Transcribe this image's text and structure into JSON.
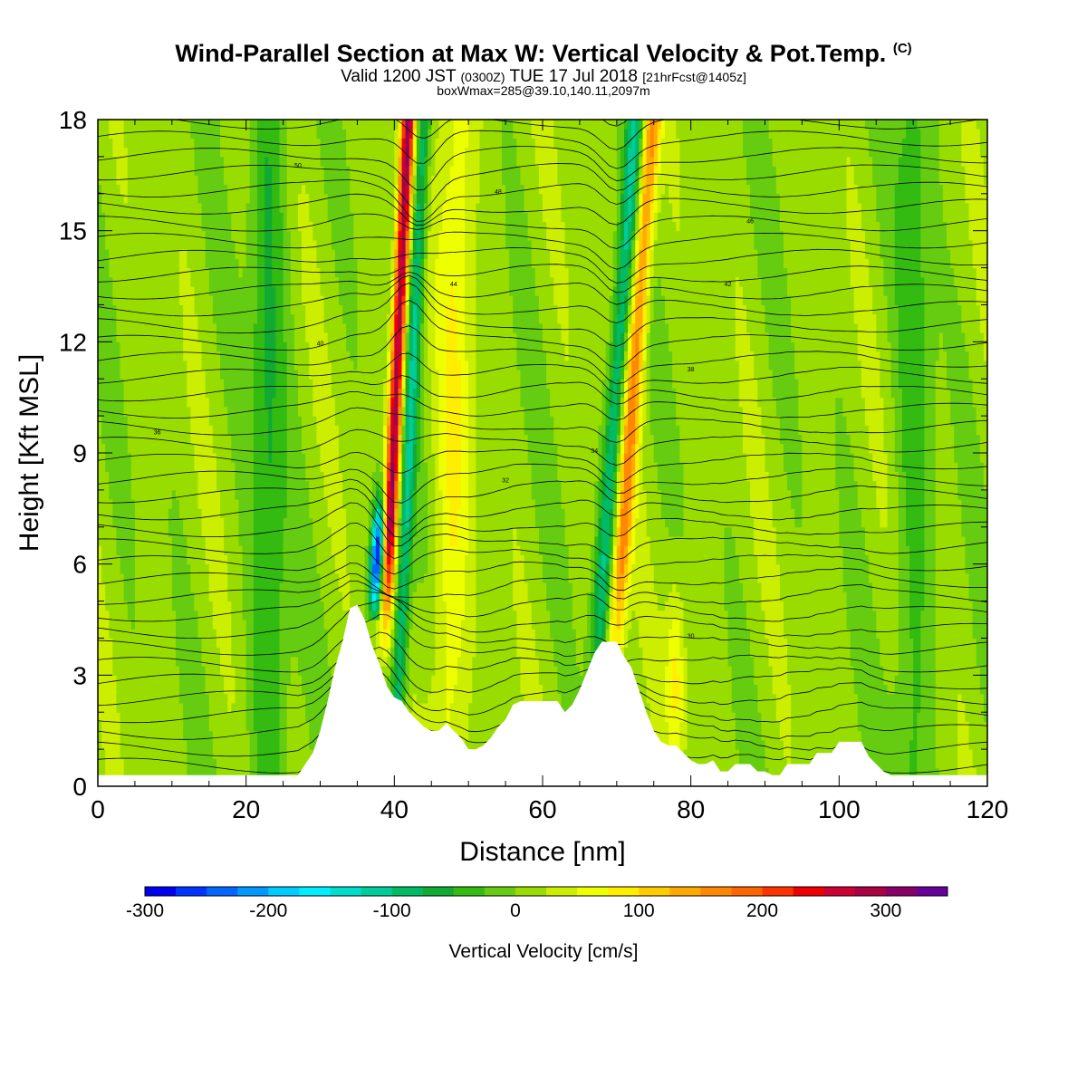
{
  "title": {
    "main": "Wind-Parallel Section at Max W: Vertical Velocity & Pot.Temp.",
    "copyright": "(C)",
    "valid_prefix": "Valid 1200 JST",
    "valid_z": "(0300Z)",
    "valid_date": "TUE 17 Jul 2018",
    "valid_fcst": "[21hrFcst@1405z]",
    "box": "boxWmax=285@39.10,140.11,2097m"
  },
  "chart_data": {
    "type": "heatmap",
    "xlabel": "Distance [nm]",
    "ylabel": "Height [Kft MSL]",
    "xlim": [
      0,
      120
    ],
    "ylim": [
      0,
      18
    ],
    "x_ticks": [
      0,
      20,
      40,
      60,
      80,
      100,
      120
    ],
    "y_ticks": [
      0,
      3,
      6,
      9,
      12,
      15,
      18
    ],
    "colorbar": {
      "label": "Vertical Velocity [cm/s]",
      "min": -300,
      "max": 350,
      "step": 25,
      "tick_values": [
        -300,
        -200,
        -100,
        0,
        100,
        200,
        300
      ],
      "colors": [
        "#0000ee",
        "#0033ff",
        "#0066ff",
        "#0099ff",
        "#00ccff",
        "#00eeff",
        "#00ddcc",
        "#00cc99",
        "#00bb66",
        "#11aa33",
        "#33bb11",
        "#66cc11",
        "#99dd00",
        "#ccee00",
        "#eeff00",
        "#ffee00",
        "#ffcc00",
        "#ffaa00",
        "#ff8800",
        "#ff6600",
        "#ff3300",
        "#ee0000",
        "#cc0033",
        "#aa0044",
        "#880066",
        "#660099"
      ]
    },
    "features": [
      {
        "kind": "updraft",
        "x_km_base": 37,
        "x_top": 40,
        "peak_cms": 285
      },
      {
        "kind": "downdraft",
        "x_base": 36,
        "x_top": 43,
        "min_cms": -300
      },
      {
        "kind": "updraft",
        "x_base": 66,
        "x_top": 73,
        "peak_cms": 150
      },
      {
        "kind": "downdraft",
        "x_base": 70,
        "x_top": 76,
        "min_cms": -100
      }
    ],
    "terrain": [
      [
        0,
        0.3
      ],
      [
        27,
        0.3
      ],
      [
        28,
        0.6
      ],
      [
        29,
        0.9
      ],
      [
        30,
        1.5
      ],
      [
        31,
        2.3
      ],
      [
        32,
        3.2
      ],
      [
        33,
        3.9
      ],
      [
        34,
        4.8
      ],
      [
        35,
        4.9
      ],
      [
        36,
        4.5
      ],
      [
        37,
        3.8
      ],
      [
        38,
        3.3
      ],
      [
        39,
        2.7
      ],
      [
        40,
        2.4
      ],
      [
        41,
        2.3
      ],
      [
        42,
        2.0
      ],
      [
        43,
        1.8
      ],
      [
        44,
        1.6
      ],
      [
        45,
        1.5
      ],
      [
        46,
        1.5
      ],
      [
        47,
        1.7
      ],
      [
        48,
        1.5
      ],
      [
        49,
        1.3
      ],
      [
        50,
        1.0
      ],
      [
        51,
        1.0
      ],
      [
        52,
        1.1
      ],
      [
        53,
        1.3
      ],
      [
        54,
        1.6
      ],
      [
        55,
        1.8
      ],
      [
        56,
        2.2
      ],
      [
        57,
        2.3
      ],
      [
        58,
        2.3
      ],
      [
        60,
        2.3
      ],
      [
        62,
        2.3
      ],
      [
        63,
        2.0
      ],
      [
        64,
        2.2
      ],
      [
        65,
        2.6
      ],
      [
        66,
        3.1
      ],
      [
        67,
        3.6
      ],
      [
        68,
        3.9
      ],
      [
        69,
        3.9
      ],
      [
        70,
        3.9
      ],
      [
        71,
        3.5
      ],
      [
        72,
        3.2
      ],
      [
        73,
        2.6
      ],
      [
        74,
        2.0
      ],
      [
        75,
        1.5
      ],
      [
        76,
        1.2
      ],
      [
        77,
        1.1
      ],
      [
        78,
        1.1
      ],
      [
        79,
        0.9
      ],
      [
        80,
        0.7
      ],
      [
        81,
        0.6
      ],
      [
        82,
        0.6
      ],
      [
        83,
        0.7
      ],
      [
        84,
        0.4
      ],
      [
        85,
        0.4
      ],
      [
        86,
        0.6
      ],
      [
        88,
        0.6
      ],
      [
        89,
        0.4
      ],
      [
        90,
        0.4
      ],
      [
        91,
        0.3
      ],
      [
        92,
        0.3
      ],
      [
        93,
        0.6
      ],
      [
        96,
        0.6
      ],
      [
        97,
        0.9
      ],
      [
        99,
        0.9
      ],
      [
        100,
        1.2
      ],
      [
        103,
        1.2
      ],
      [
        104,
        0.8
      ],
      [
        105,
        0.6
      ],
      [
        106,
        0.4
      ],
      [
        107,
        0.3
      ],
      [
        120,
        0.3
      ]
    ],
    "theta_contour_labels": [
      "50",
      "48",
      "46",
      "44",
      "42",
      "40",
      "38",
      "36",
      "34",
      "32",
      "30"
    ]
  }
}
